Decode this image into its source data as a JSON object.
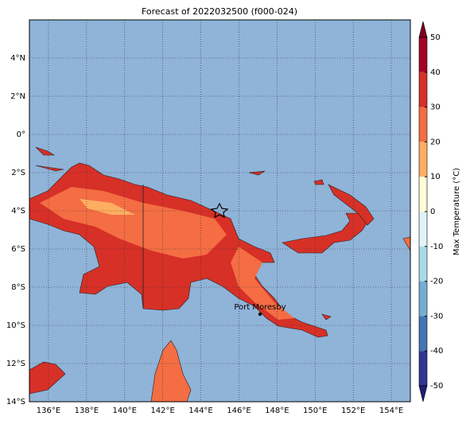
{
  "map": {
    "title": "Forecast of 2022032500 (f000-024)",
    "xlim": [
      135,
      155
    ],
    "ylim": [
      -14,
      6
    ],
    "xticks": [
      {
        "value": 136,
        "label": "136°E"
      },
      {
        "value": 138,
        "label": "138°E"
      },
      {
        "value": 140,
        "label": "140°E"
      },
      {
        "value": 142,
        "label": "142°E"
      },
      {
        "value": 144,
        "label": "144°E"
      },
      {
        "value": 146,
        "label": "146°E"
      },
      {
        "value": 148,
        "label": "148°E"
      },
      {
        "value": 150,
        "label": "150°E"
      },
      {
        "value": 152,
        "label": "152°E"
      },
      {
        "value": 154,
        "label": "154°E"
      }
    ],
    "yticks": [
      {
        "value": 4,
        "label": "4°N"
      },
      {
        "value": 2,
        "label": "2°N"
      },
      {
        "value": 0,
        "label": "0°"
      },
      {
        "value": -2,
        "label": "2°S"
      },
      {
        "value": -4,
        "label": "4°S"
      },
      {
        "value": -6,
        "label": "6°S"
      },
      {
        "value": -8,
        "label": "8°S"
      },
      {
        "value": -10,
        "label": "10°S"
      },
      {
        "value": -12,
        "label": "12°S"
      },
      {
        "value": -14,
        "label": "14°S"
      }
    ],
    "ocean_color": "#90b3d8",
    "grid": true
  },
  "colorbar": {
    "label": "Max Temperature (°C)",
    "ticks": [
      50,
      40,
      30,
      20,
      10,
      0,
      -10,
      -20,
      -30,
      -40,
      -50
    ],
    "colors": [
      "#a50026",
      "#d73027",
      "#f46d43",
      "#fdae61",
      "#fffcd8",
      "#e0f3f8",
      "#abd9e9",
      "#74add1",
      "#4575b4",
      "#313695"
    ],
    "over_color": "#7f0020",
    "under_color": "#1e1e78"
  },
  "markers": [
    {
      "label": "Port Moresby"
    }
  ]
}
